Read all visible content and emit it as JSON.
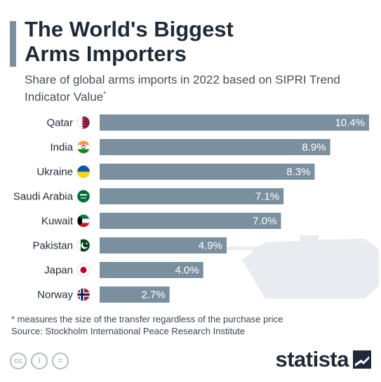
{
  "header": {
    "title": "The World's Biggest\nArms Importers",
    "subtitle": "Share of global arms imports in 2022 based on SIPRI Trend Indicator Value",
    "subtitle_mark": "*"
  },
  "chart_data": {
    "type": "bar",
    "orientation": "horizontal",
    "categories": [
      "Qatar",
      "India",
      "Ukraine",
      "Saudi Arabia",
      "Kuwait",
      "Pakistan",
      "Japan",
      "Norway"
    ],
    "values": [
      10.4,
      8.9,
      8.3,
      7.1,
      7.0,
      4.9,
      4.0,
      2.7
    ],
    "value_labels": [
      "10.4%",
      "8.9%",
      "8.3%",
      "7.1%",
      "7.0%",
      "4.9%",
      "4.0%",
      "2.7%"
    ],
    "unit": "%",
    "xlim": [
      0,
      10.4
    ],
    "grid": false,
    "legend": "none",
    "xlabel": "",
    "ylabel": ""
  },
  "colors": {
    "bar": "#7b909f",
    "accent": "#7b909f",
    "decoration": "#e8ecf0",
    "text": "#1f2a38",
    "brand": "#1f2a38"
  },
  "flags": [
    "qatar-flag-icon",
    "india-flag-icon",
    "ukraine-flag-icon",
    "saudi-arabia-flag-icon",
    "kuwait-flag-icon",
    "pakistan-flag-icon",
    "japan-flag-icon",
    "norway-flag-icon"
  ],
  "footer": {
    "note": "* measures the size of the transfer regardless of the purchase price",
    "source": "Source: Stockholm International Peace Research Institute",
    "license_icons": [
      {
        "name": "cc-icon",
        "glyph": "cc"
      },
      {
        "name": "attribution-icon",
        "glyph": "i"
      },
      {
        "name": "no-derivatives-icon",
        "glyph": "="
      }
    ],
    "brand": "statista"
  }
}
